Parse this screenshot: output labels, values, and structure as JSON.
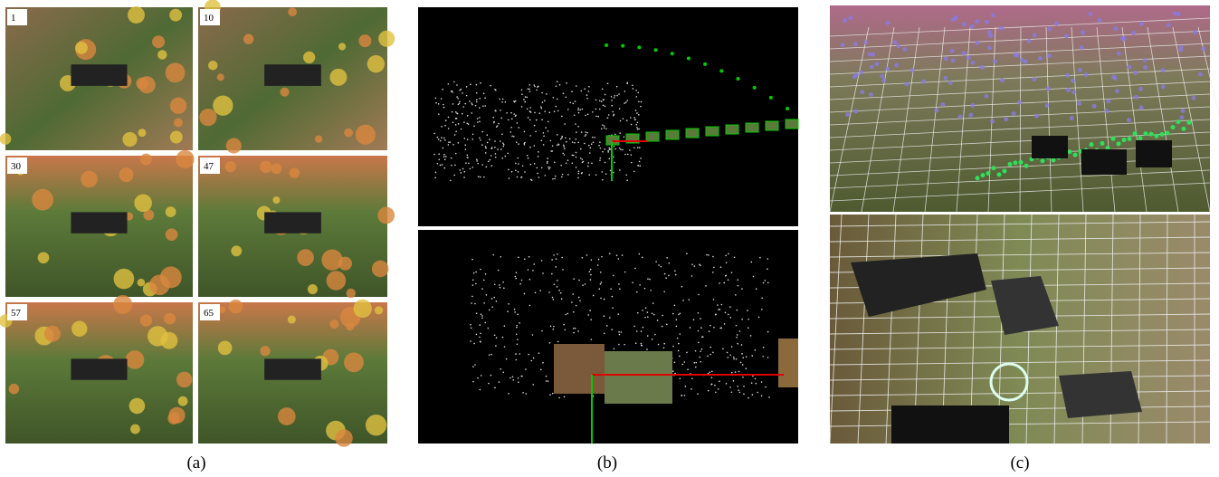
{
  "figure": {
    "panels": [
      {
        "caption": "(a)",
        "frames": [
          "1",
          "10",
          "30",
          "47",
          "57",
          "65"
        ]
      },
      {
        "caption": "(b)"
      },
      {
        "caption": "(c)"
      }
    ]
  }
}
